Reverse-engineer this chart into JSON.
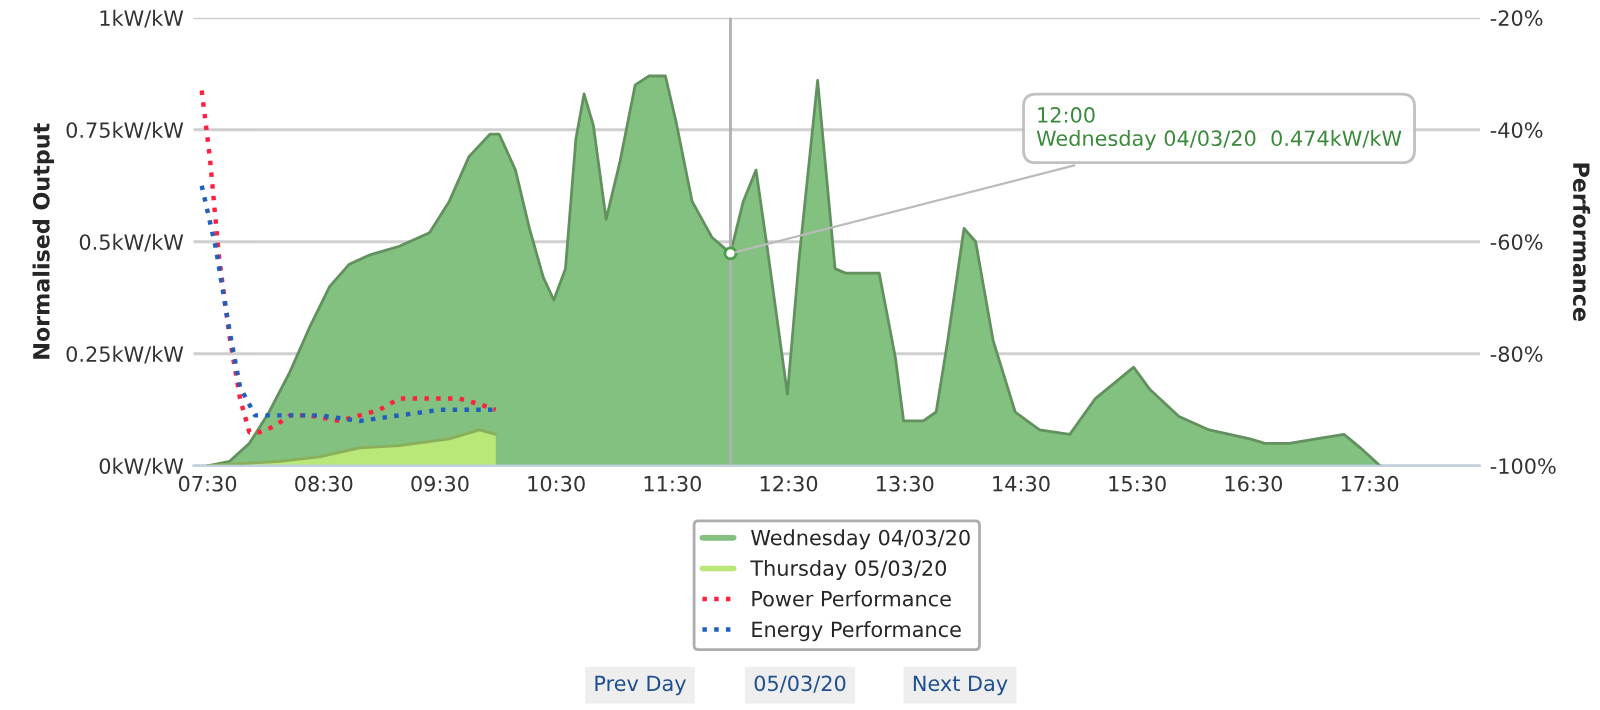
{
  "chart_data": {
    "type": "area",
    "ylabel": "Normalised Output",
    "y2label": "Performance",
    "xlim": [
      7.38,
      18.45
    ],
    "xticks": [
      {
        "value": 7.5,
        "label": "07:30"
      },
      {
        "value": 8.5,
        "label": "08:30"
      },
      {
        "value": 9.5,
        "label": "09:30"
      },
      {
        "value": 10.5,
        "label": "10:30"
      },
      {
        "value": 11.5,
        "label": "11:30"
      },
      {
        "value": 12.5,
        "label": "12:30"
      },
      {
        "value": 13.5,
        "label": "13:30"
      },
      {
        "value": 14.5,
        "label": "14:30"
      },
      {
        "value": 15.5,
        "label": "15:30"
      },
      {
        "value": 16.5,
        "label": "16:30"
      },
      {
        "value": 17.5,
        "label": "17:30"
      }
    ],
    "ylim": [
      0,
      1
    ],
    "yticks": [
      {
        "value": 0,
        "label": "0kW/kW"
      },
      {
        "value": 0.25,
        "label": "0.25kW/kW"
      },
      {
        "value": 0.5,
        "label": "0.5kW/kW"
      },
      {
        "value": 0.75,
        "label": "0.75kW/kW"
      },
      {
        "value": 1,
        "label": "1kW/kW"
      }
    ],
    "y2lim": [
      -100,
      -20
    ],
    "y2ticks": [
      {
        "value": -100,
        "label": "-100%"
      },
      {
        "value": -80,
        "label": "-80%"
      },
      {
        "value": -60,
        "label": "-60%"
      },
      {
        "value": -40,
        "label": "-40%"
      },
      {
        "value": -20,
        "label": "-20%"
      }
    ],
    "grid": "y",
    "legend": "bottom",
    "series": [
      {
        "name": "Wednesday 04/03/20",
        "color": "#82c17f",
        "x": [
          7.5,
          7.69,
          7.86,
          8.03,
          8.21,
          8.38,
          8.55,
          8.72,
          8.89,
          9.15,
          9.41,
          9.58,
          9.75,
          9.93,
          10.01,
          10.15,
          10.27,
          10.39,
          10.48,
          10.58,
          10.67,
          10.74,
          10.82,
          10.93,
          11.05,
          11.18,
          11.3,
          11.44,
          11.53,
          11.67,
          11.84,
          12.0,
          12.11,
          12.22,
          12.32,
          12.49,
          12.59,
          12.75,
          12.9,
          12.99,
          13.28,
          13.42,
          13.49,
          13.66,
          13.77,
          13.87,
          14.01,
          14.11,
          14.26,
          14.45,
          14.66,
          14.92,
          15.14,
          15.47,
          15.61,
          15.86,
          16.12,
          16.47,
          16.6,
          16.81,
          17.04,
          17.28,
          17.42,
          17.59
        ],
        "values": [
          0,
          0.01,
          0.05,
          0.12,
          0.21,
          0.31,
          0.4,
          0.45,
          0.47,
          0.49,
          0.52,
          0.59,
          0.69,
          0.74,
          0.74,
          0.66,
          0.53,
          0.42,
          0.37,
          0.44,
          0.73,
          0.83,
          0.76,
          0.55,
          0.68,
          0.85,
          0.87,
          0.87,
          0.77,
          0.59,
          0.51,
          0.474,
          0.59,
          0.66,
          0.48,
          0.16,
          0.46,
          0.86,
          0.44,
          0.43,
          0.43,
          0.24,
          0.1,
          0.1,
          0.12,
          0.28,
          0.53,
          0.5,
          0.28,
          0.12,
          0.08,
          0.07,
          0.15,
          0.22,
          0.17,
          0.11,
          0.08,
          0.06,
          0.05,
          0.05,
          0.06,
          0.07,
          0.04,
          0
        ]
      },
      {
        "name": "Thursday 05/03/20",
        "color": "#b9e878",
        "x": [
          7.5,
          8.12,
          8.46,
          8.81,
          9.15,
          9.58,
          9.84,
          9.98
        ],
        "values": [
          0,
          0.01,
          0.02,
          0.04,
          0.045,
          0.06,
          0.08,
          0.07
        ]
      },
      {
        "name": "Power Performance",
        "type": "line",
        "axis": "y2",
        "line_style": "dotted",
        "color": "#ff2040",
        "x": [
          7.45,
          7.52,
          7.6,
          7.69,
          7.78,
          7.86,
          7.95,
          8.07,
          8.21,
          8.38,
          8.64,
          8.81,
          8.98,
          9.15,
          9.41,
          9.67,
          9.84,
          9.98
        ],
        "values": [
          -33,
          -45,
          -63,
          -77,
          -88,
          -94,
          -94,
          -93,
          -91,
          -91,
          -92,
          -91,
          -90,
          -88,
          -88,
          -88,
          -89,
          -90
        ]
      },
      {
        "name": "Energy Performance",
        "type": "line",
        "axis": "y2",
        "line_style": "dotted",
        "color": "#1f5fbf",
        "x": [
          7.45,
          7.57,
          7.69,
          7.78,
          7.91,
          8.12,
          8.46,
          8.81,
          9.15,
          9.5,
          9.98
        ],
        "values": [
          -50,
          -61,
          -76,
          -86,
          -91,
          -91,
          -91,
          -92,
          -91,
          -90,
          -90
        ]
      }
    ],
    "ref_lines": [
      {
        "axis": "x",
        "value": 12.0,
        "color": "#b0b0b0"
      }
    ],
    "annotations": [
      {
        "text": "12:00\nWednesday 04/03/20  0.474kW/kW",
        "x": 12.0,
        "y": 0.474
      },
      "Prev Day",
      "05/03/20",
      "Next Day"
    ]
  }
}
